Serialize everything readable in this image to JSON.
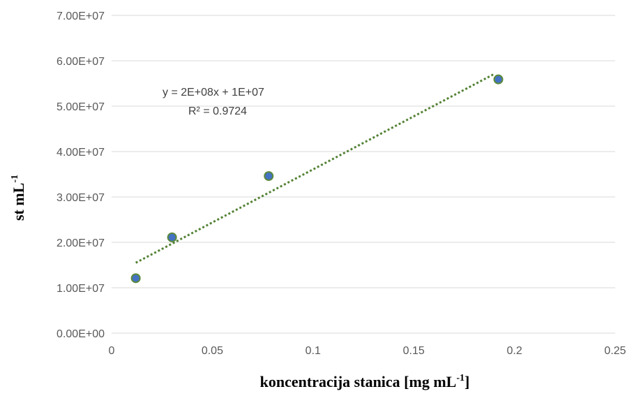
{
  "chart_data": {
    "type": "scatter",
    "title": "",
    "xlabel": {
      "main": "koncentracija stanica [mg mL",
      "sup": "-1",
      "end": "]"
    },
    "ylabel": {
      "main": "st mL",
      "sup": "-1"
    },
    "xlim": [
      0,
      0.25
    ],
    "ylim": [
      0,
      70000000
    ],
    "x_ticks": [
      0,
      0.05,
      0.1,
      0.15,
      0.2,
      0.25
    ],
    "x_tick_labels": [
      "0",
      "0.05",
      "0.1",
      "0.15",
      "0.2",
      "0.25"
    ],
    "y_ticks": [
      0,
      10000000,
      20000000,
      30000000,
      40000000,
      50000000,
      60000000,
      70000000
    ],
    "y_tick_labels": [
      "0.00E+00",
      "1.00E+07",
      "2.00E+07",
      "3.00E+07",
      "4.00E+07",
      "5.00E+07",
      "6.00E+07",
      "7.00E+07"
    ],
    "grid": "horizontal",
    "series": [
      {
        "x": [
          0.012,
          0.03,
          0.078,
          0.192
        ],
        "y": [
          12100000,
          21100000,
          34600000,
          55900000
        ],
        "marker_color": "#4472c4",
        "marker_edge": "#5b8a3c"
      }
    ],
    "trendline": {
      "type": "linear",
      "x": [
        0.012,
        0.19
      ],
      "y": [
        15500000,
        57100000
      ],
      "color": "#548235",
      "style": "dotted",
      "equation": "y = 2E+08x + 1E+07",
      "r_squared": "R² = 0.9724"
    }
  }
}
